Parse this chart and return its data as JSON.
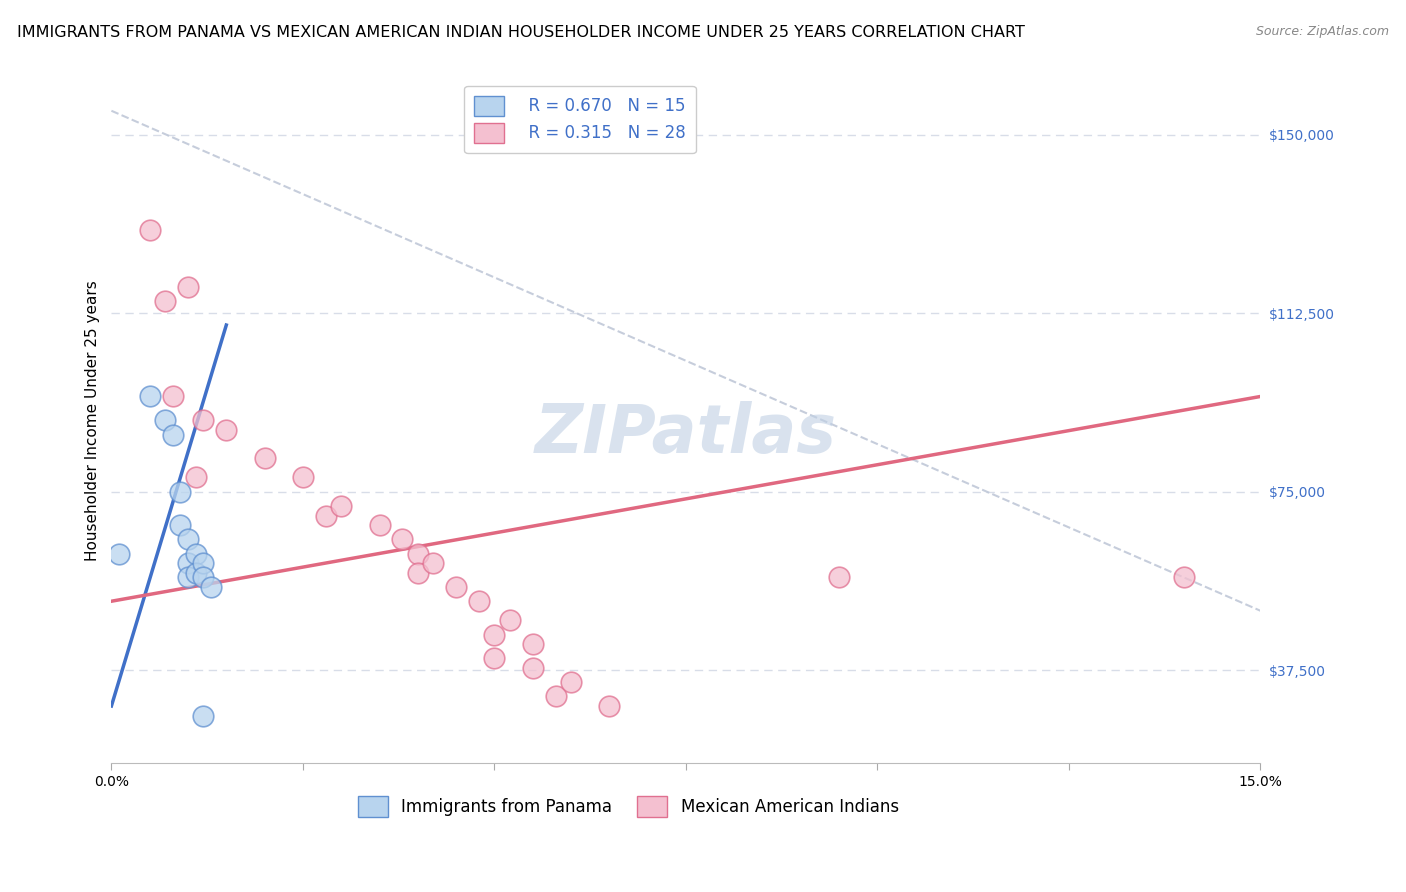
{
  "title": "IMMIGRANTS FROM PANAMA VS MEXICAN AMERICAN INDIAN HOUSEHOLDER INCOME UNDER 25 YEARS CORRELATION CHART",
  "source": "Source: ZipAtlas.com",
  "ylabel": "Householder Income Under 25 years",
  "xlim": [
    0.0,
    0.15
  ],
  "ylim": [
    18000,
    162000
  ],
  "yticks": [
    37500,
    75000,
    112500,
    150000
  ],
  "ytick_labels": [
    "$37,500",
    "$75,000",
    "$112,500",
    "$150,000"
  ],
  "xticks": [
    0.0,
    0.025,
    0.05,
    0.075,
    0.1,
    0.125,
    0.15
  ],
  "xtick_labels": [
    "0.0%",
    "",
    "",
    "",
    "",
    "",
    "15.0%"
  ],
  "watermark": "ZIPatlas",
  "legend_blue_r": "0.670",
  "legend_blue_n": "15",
  "legend_pink_r": "0.315",
  "legend_pink_n": "28",
  "blue_fill": "#b8d4ee",
  "pink_fill": "#f4c0d0",
  "blue_edge": "#6090d0",
  "pink_edge": "#e07090",
  "blue_line_color": "#4070c8",
  "pink_line_color": "#e06880",
  "diag_line_color": "#c0c8d8",
  "background_color": "#ffffff",
  "grid_color": "#d8dde8",
  "title_fontsize": 11.5,
  "axis_label_fontsize": 11,
  "tick_fontsize": 10,
  "watermark_fontsize": 48,
  "watermark_color": "#c0d0e4",
  "watermark_alpha": 0.6,
  "legend_fontsize": 12,
  "blue_scatter": [
    [
      0.001,
      62000
    ],
    [
      0.005,
      95000
    ],
    [
      0.007,
      90000
    ],
    [
      0.008,
      87000
    ],
    [
      0.009,
      75000
    ],
    [
      0.009,
      68000
    ],
    [
      0.01,
      65000
    ],
    [
      0.01,
      60000
    ],
    [
      0.01,
      57000
    ],
    [
      0.011,
      62000
    ],
    [
      0.011,
      58000
    ],
    [
      0.012,
      60000
    ],
    [
      0.012,
      57000
    ],
    [
      0.013,
      55000
    ],
    [
      0.012,
      28000
    ]
  ],
  "pink_scatter": [
    [
      0.005,
      130000
    ],
    [
      0.007,
      115000
    ],
    [
      0.01,
      118000
    ],
    [
      0.008,
      95000
    ],
    [
      0.012,
      90000
    ],
    [
      0.011,
      78000
    ],
    [
      0.015,
      88000
    ],
    [
      0.02,
      82000
    ],
    [
      0.025,
      78000
    ],
    [
      0.028,
      70000
    ],
    [
      0.03,
      72000
    ],
    [
      0.035,
      68000
    ],
    [
      0.038,
      65000
    ],
    [
      0.04,
      62000
    ],
    [
      0.04,
      58000
    ],
    [
      0.042,
      60000
    ],
    [
      0.045,
      55000
    ],
    [
      0.048,
      52000
    ],
    [
      0.05,
      45000
    ],
    [
      0.05,
      40000
    ],
    [
      0.052,
      48000
    ],
    [
      0.055,
      43000
    ],
    [
      0.055,
      38000
    ],
    [
      0.058,
      32000
    ],
    [
      0.06,
      35000
    ],
    [
      0.065,
      30000
    ],
    [
      0.095,
      57000
    ],
    [
      0.14,
      57000
    ]
  ]
}
